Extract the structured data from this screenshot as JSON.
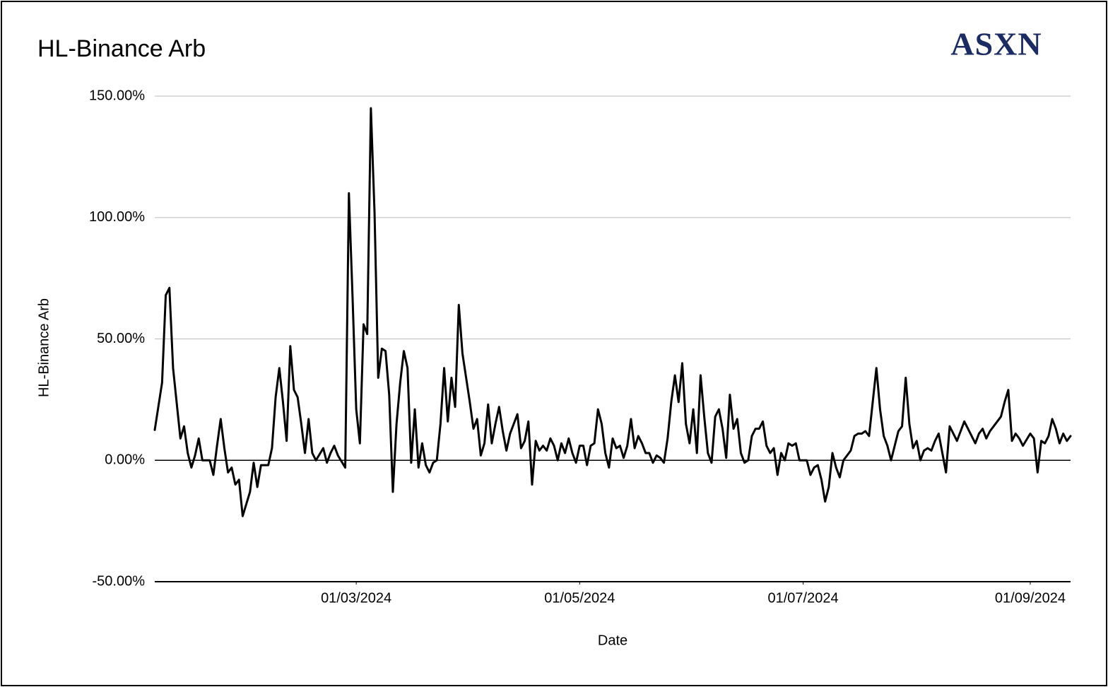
{
  "chart_data": {
    "type": "line",
    "title": "HL-Binance Arb",
    "logo": "ASXN",
    "x_label": "Date",
    "y_label": "HL-Binance Arb",
    "xlim": [
      "06/01/2024",
      "12/09/2024"
    ],
    "xticks": [
      "01/03/2024",
      "01/05/2024",
      "01/07/2024",
      "01/09/2024"
    ],
    "ylim": [
      -50,
      150
    ],
    "yticks": [
      {
        "value": -50,
        "label": "-50.00%"
      },
      {
        "value": 0,
        "label": "0.00%"
      },
      {
        "value": 50,
        "label": "50.00%"
      },
      {
        "value": 100,
        "label": "100.00%"
      },
      {
        "value": 150,
        "label": "150.00%"
      }
    ],
    "grid": true,
    "series": [
      {
        "name": "HL-Binance Arb",
        "color": "#000000",
        "x": [
          "06/01/2024",
          "08/01/2024",
          "09/01/2024",
          "10/01/2024",
          "11/01/2024",
          "13/01/2024",
          "14/01/2024",
          "15/01/2024",
          "16/01/2024",
          "17/01/2024",
          "18/01/2024",
          "19/01/2024",
          "21/01/2024",
          "22/01/2024",
          "23/01/2024",
          "24/01/2024",
          "25/01/2024",
          "26/01/2024",
          "27/01/2024",
          "28/01/2024",
          "29/01/2024",
          "30/01/2024",
          "01/02/2024",
          "02/02/2024",
          "03/02/2024",
          "04/02/2024",
          "06/02/2024",
          "07/02/2024",
          "08/02/2024",
          "09/02/2024",
          "10/02/2024",
          "11/02/2024",
          "12/02/2024",
          "13/02/2024",
          "14/02/2024",
          "15/02/2024",
          "16/02/2024",
          "17/02/2024",
          "18/02/2024",
          "19/02/2024",
          "21/02/2024",
          "22/02/2024",
          "23/02/2024",
          "24/02/2024",
          "25/02/2024",
          "27/02/2024",
          "28/02/2024",
          "29/02/2024",
          "01/03/2024",
          "02/03/2024",
          "03/03/2024",
          "04/03/2024",
          "05/03/2024",
          "06/03/2024",
          "07/03/2024",
          "08/03/2024",
          "09/03/2024",
          "10/03/2024",
          "11/03/2024",
          "12/03/2024",
          "13/03/2024",
          "14/03/2024",
          "15/03/2024",
          "16/03/2024",
          "17/03/2024",
          "18/03/2024",
          "19/03/2024",
          "20/03/2024",
          "21/03/2024",
          "22/03/2024",
          "23/03/2024",
          "24/03/2024",
          "25/03/2024",
          "26/03/2024",
          "27/03/2024",
          "28/03/2024",
          "29/03/2024",
          "30/03/2024",
          "31/03/2024",
          "01/04/2024",
          "02/04/2024",
          "03/04/2024",
          "04/04/2024",
          "05/04/2024",
          "06/04/2024",
          "07/04/2024",
          "08/04/2024",
          "09/04/2024",
          "10/04/2024",
          "11/04/2024",
          "12/04/2024",
          "14/04/2024",
          "15/04/2024",
          "16/04/2024",
          "17/04/2024",
          "18/04/2024",
          "19/04/2024",
          "20/04/2024",
          "21/04/2024",
          "22/04/2024",
          "23/04/2024",
          "24/04/2024",
          "25/04/2024",
          "26/04/2024",
          "27/04/2024",
          "28/04/2024",
          "29/04/2024",
          "30/04/2024",
          "01/05/2024",
          "02/05/2024",
          "03/05/2024",
          "04/05/2024",
          "05/05/2024",
          "06/05/2024",
          "07/05/2024",
          "08/05/2024",
          "09/05/2024",
          "10/05/2024",
          "11/05/2024",
          "12/05/2024",
          "13/05/2024",
          "14/05/2024",
          "15/05/2024",
          "16/05/2024",
          "17/05/2024",
          "18/05/2024",
          "19/05/2024",
          "20/05/2024",
          "21/05/2024",
          "22/05/2024",
          "23/05/2024",
          "24/05/2024",
          "25/05/2024",
          "26/05/2024",
          "27/05/2024",
          "28/05/2024",
          "29/05/2024",
          "30/05/2024",
          "31/05/2024",
          "01/06/2024",
          "02/06/2024",
          "03/06/2024",
          "04/06/2024",
          "05/06/2024",
          "06/06/2024",
          "07/06/2024",
          "08/06/2024",
          "09/06/2024",
          "10/06/2024",
          "11/06/2024",
          "12/06/2024",
          "13/06/2024",
          "14/06/2024",
          "15/06/2024",
          "16/06/2024",
          "17/06/2024",
          "18/06/2024",
          "19/06/2024",
          "20/06/2024",
          "21/06/2024",
          "22/06/2024",
          "23/06/2024",
          "24/06/2024",
          "25/06/2024",
          "26/06/2024",
          "27/06/2024",
          "28/06/2024",
          "29/06/2024",
          "30/06/2024",
          "01/07/2024",
          "02/07/2024",
          "03/07/2024",
          "04/07/2024",
          "05/07/2024",
          "06/07/2024",
          "07/07/2024",
          "08/07/2024",
          "09/07/2024",
          "10/07/2024",
          "11/07/2024",
          "12/07/2024",
          "13/07/2024",
          "14/07/2024",
          "15/07/2024",
          "16/07/2024",
          "17/07/2024",
          "18/07/2024",
          "19/07/2024",
          "20/07/2024",
          "21/07/2024",
          "22/07/2024",
          "23/07/2024",
          "24/07/2024",
          "25/07/2024",
          "26/07/2024",
          "27/07/2024",
          "28/07/2024",
          "29/07/2024",
          "30/07/2024",
          "31/07/2024",
          "01/08/2024",
          "02/08/2024",
          "03/08/2024",
          "04/08/2024",
          "05/08/2024",
          "06/08/2024",
          "07/08/2024",
          "08/08/2024",
          "09/08/2024",
          "10/08/2024",
          "11/08/2024",
          "12/08/2024",
          "13/08/2024",
          "14/08/2024",
          "15/08/2024",
          "17/08/2024",
          "18/08/2024",
          "19/08/2024",
          "20/08/2024",
          "21/08/2024",
          "22/08/2024",
          "23/08/2024",
          "24/08/2024",
          "25/08/2024",
          "26/08/2024",
          "27/08/2024",
          "28/08/2024",
          "29/08/2024",
          "30/08/2024",
          "01/09/2024",
          "02/09/2024",
          "03/09/2024",
          "04/09/2024",
          "05/09/2024",
          "06/09/2024",
          "07/09/2024",
          "08/09/2024",
          "09/09/2024",
          "10/09/2024",
          "11/09/2024",
          "12/09/2024"
        ],
        "values": [
          12.5,
          32,
          68,
          71,
          38,
          9,
          14,
          3,
          -3,
          2,
          9,
          0,
          0,
          -6,
          6,
          17,
          5,
          -5,
          -3,
          -10,
          -8,
          -23,
          -13,
          -1,
          -11,
          -2,
          -2,
          5,
          26,
          38,
          24,
          8,
          47,
          29,
          26,
          15,
          3,
          17,
          3,
          0,
          5,
          -1,
          3,
          6,
          2,
          -3,
          110,
          67,
          21,
          7,
          56,
          52,
          145,
          102,
          34,
          46,
          45,
          27,
          -13,
          15,
          32,
          45,
          38,
          -1,
          21,
          -3,
          7,
          -2,
          -5,
          -1,
          0,
          15,
          38,
          16,
          34,
          22,
          64,
          44,
          34,
          24,
          13,
          17,
          2,
          7,
          23,
          7,
          15,
          22,
          12,
          4,
          11,
          19,
          5,
          8,
          16,
          -10,
          8,
          4,
          6,
          4,
          9,
          6,
          0,
          7,
          3,
          9,
          3,
          -1,
          6,
          6,
          -2,
          6,
          7,
          21,
          15,
          3,
          -3,
          9,
          5,
          6,
          1,
          6,
          17,
          5,
          10,
          7,
          3,
          3,
          -1,
          2,
          1,
          -1,
          9,
          24,
          35,
          24,
          40,
          15,
          7,
          21,
          3,
          35,
          18,
          3,
          -1,
          18,
          21,
          13,
          1,
          27,
          13,
          17,
          3,
          -1,
          0,
          10,
          13,
          13,
          16,
          6,
          3,
          5,
          -6,
          3,
          0,
          7,
          6,
          7,
          0,
          0,
          0,
          -6,
          -3,
          -2,
          -8,
          -17,
          -11,
          3,
          -3,
          -7,
          0,
          2,
          4,
          10,
          11,
          11,
          12,
          10,
          24,
          38,
          21,
          10,
          6,
          0,
          6,
          12,
          14,
          34,
          15,
          5,
          8,
          0,
          4,
          5,
          4,
          8,
          11,
          3,
          -5,
          14,
          11,
          8,
          12,
          16,
          13,
          7,
          11,
          13,
          9,
          12,
          14,
          16,
          18,
          24,
          29,
          8,
          11,
          9,
          6,
          11,
          9,
          -5,
          8,
          7,
          10,
          17,
          13,
          7,
          11,
          8,
          10
        ]
      }
    ]
  }
}
